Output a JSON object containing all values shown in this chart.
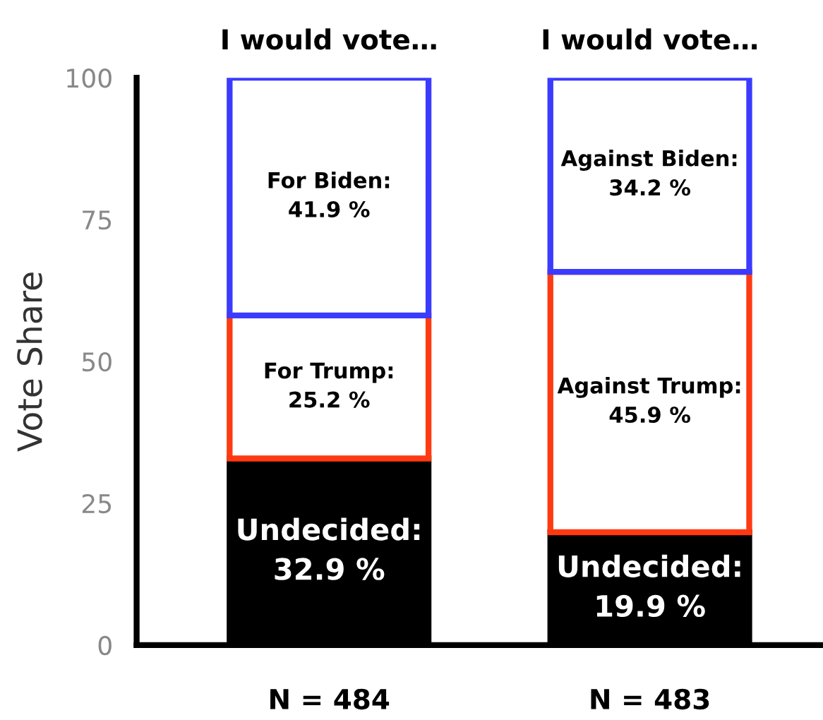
{
  "chart_data": {
    "type": "bar",
    "stacked": true,
    "ylabel": "Vote Share",
    "categories": [
      "N = 484",
      "N = 483"
    ],
    "series": [
      {
        "color": "#000000",
        "values": [
          32.9,
          19.9
        ],
        "value_labels": [
          "Undecided:\n32.9 %",
          "Undecided:\n19.9 %"
        ]
      },
      {
        "color": "#ff3a12",
        "values": [
          25.2,
          45.9
        ],
        "value_labels": [
          "For Trump:\n25.2 %",
          "Against Trump:\n45.9 %"
        ]
      },
      {
        "color": "#3b3bff",
        "values": [
          41.9,
          34.2
        ],
        "value_labels": [
          "For Biden:\n41.9 %",
          "Against Biden:\n34.2 %"
        ]
      }
    ],
    "annotations": [
      "I would vote…",
      "I would vote…"
    ],
    "ylim": [
      0,
      100
    ],
    "yticks": [
      0,
      25,
      50,
      75,
      100
    ],
    "grid": false,
    "legend": false
  }
}
